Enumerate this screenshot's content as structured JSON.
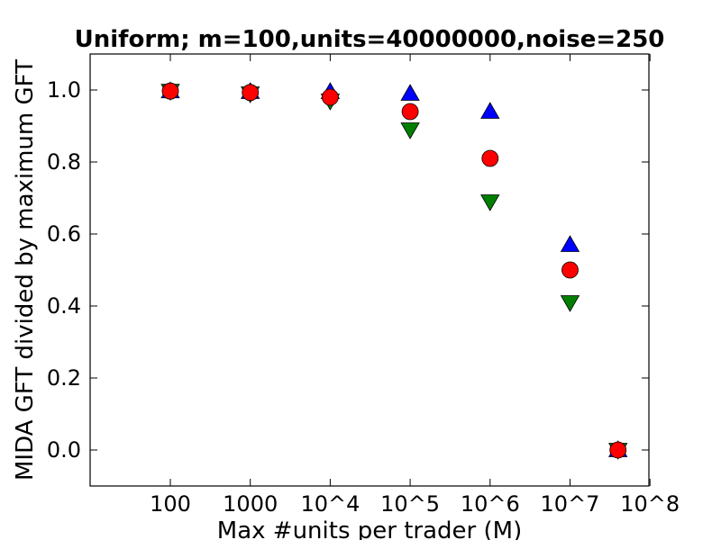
{
  "chart_data": {
    "type": "scatter",
    "title": "Uniform; m=100,units=40000000,noise=250",
    "xlabel": "Max #units per trader (M)",
    "ylabel": "MIDA GFT divided by maximum GFT",
    "x_ticks": [
      "100",
      "1000",
      "10^4",
      "10^5",
      "10^6",
      "10^7",
      "10^8"
    ],
    "y_ticks": [
      "0.0",
      "0.2",
      "0.4",
      "0.6",
      "0.8",
      "1.0"
    ],
    "ylim": [
      -0.1,
      1.1
    ],
    "grid": false,
    "series": [
      {
        "marker": "triangle-up",
        "color": "#0000ff",
        "points": [
          {
            "x": "100",
            "y": 0.997
          },
          {
            "x": "1000",
            "y": 0.995
          },
          {
            "x": "10^4",
            "y": 0.995
          },
          {
            "x": "10^5",
            "y": 0.99
          },
          {
            "x": "10^6",
            "y": 0.94
          },
          {
            "x": "10^7",
            "y": 0.57
          },
          {
            "x": "10^7.6",
            "y": 0.0
          }
        ]
      },
      {
        "marker": "triangle-down",
        "color": "#008000",
        "points": [
          {
            "x": "100",
            "y": 0.997
          },
          {
            "x": "1000",
            "y": 0.99
          },
          {
            "x": "10^4",
            "y": 0.97
          },
          {
            "x": "10^5",
            "y": 0.89
          },
          {
            "x": "10^6",
            "y": 0.69
          },
          {
            "x": "10^7",
            "y": 0.41
          },
          {
            "x": "10^7.6",
            "y": 0.0
          }
        ]
      },
      {
        "marker": "circle",
        "color": "#ff0000",
        "points": [
          {
            "x": "100",
            "y": 0.997
          },
          {
            "x": "1000",
            "y": 0.993
          },
          {
            "x": "10^4",
            "y": 0.98
          },
          {
            "x": "10^5",
            "y": 0.94
          },
          {
            "x": "10^6",
            "y": 0.81
          },
          {
            "x": "10^7",
            "y": 0.5
          },
          {
            "x": "10^7.6",
            "y": 0.0
          }
        ]
      }
    ]
  }
}
